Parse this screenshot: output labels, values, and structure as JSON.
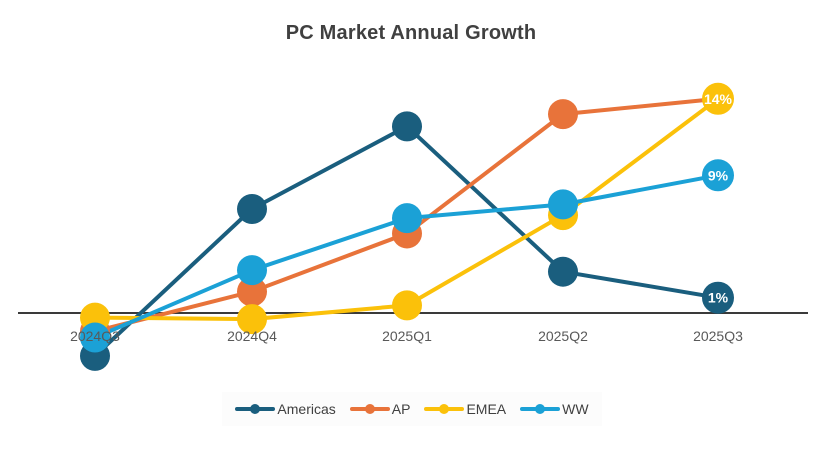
{
  "chart_data": {
    "type": "line",
    "title": "PC Market Annual Growth",
    "xlabel": "",
    "ylabel": "",
    "categories": [
      "2024Q3",
      "2024Q4",
      "2025Q1",
      "2025Q2",
      "2025Q3"
    ],
    "ylim": [
      -4,
      16
    ],
    "grid": false,
    "legend_position": "bottom",
    "series": [
      {
        "name": "Americas",
        "color": "#1a5e7e",
        "values": [
          -2.8,
          6.8,
          12.2,
          2.7,
          1
        ],
        "end_label": "1%"
      },
      {
        "name": "AP",
        "color": "#e8733a",
        "values": [
          -1.2,
          1.4,
          5.2,
          13.0,
          14
        ],
        "end_label": ""
      },
      {
        "name": "EMEA",
        "color": "#fbc10a",
        "values": [
          -0.3,
          -0.4,
          0.5,
          6.4,
          14
        ],
        "end_label": "14%"
      },
      {
        "name": "WW",
        "color": "#1ba1d6",
        "values": [
          -1.6,
          2.8,
          6.2,
          7.1,
          9
        ],
        "end_label": "9%"
      }
    ]
  }
}
